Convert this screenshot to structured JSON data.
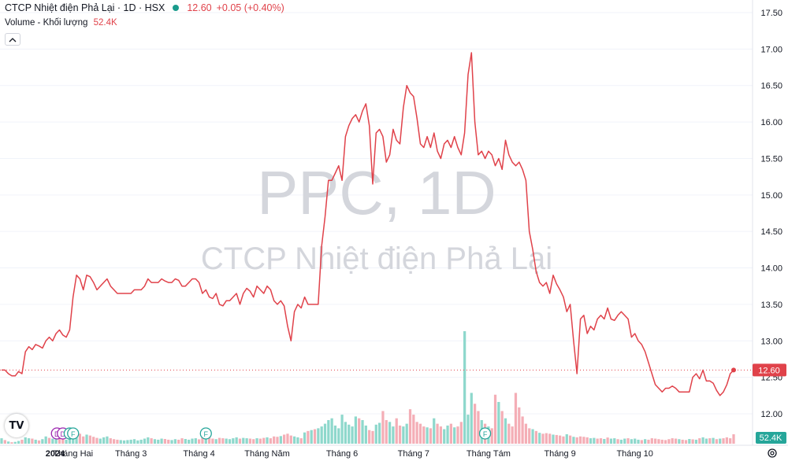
{
  "header": {
    "title": "CTCP Nhiệt điện Phả Lại · 1D · HSX",
    "price": "12.60",
    "change": "+0.05 (+0.40%)",
    "volume_label": "Volume - Khối lượng",
    "volume_value": "52.4K"
  },
  "watermark": {
    "line1": "PPC, 1D",
    "line2": "CTCP Nhiệt điện Phả Lại"
  },
  "colors": {
    "line": "#e0424a",
    "vol_up": "#8ed8cc",
    "vol_down": "#f4aeb6",
    "watermark": "#d4d6dc",
    "up_badge": "#26a69a",
    "div_badge": "#9c27b0",
    "grid": "#f0f3fa"
  },
  "icons": [
    "chevron-up-icon",
    "tradingview-logo-icon",
    "gear-icon"
  ],
  "chart_data": {
    "type": "line",
    "title": "CTCP Nhiệt điện Phả Lại · 1D · HSX",
    "y_axis": {
      "min": 11.8,
      "max": 17.6,
      "ticks": [
        "17.50",
        "17.00",
        "16.50",
        "16.00",
        "15.50",
        "15.00",
        "14.50",
        "14.00",
        "13.50",
        "13.00",
        "12.50",
        "12.00"
      ],
      "position": "right"
    },
    "x_axis": {
      "labels": [
        "2024",
        "Tháng Hai",
        "Tháng 3",
        "Tháng 4",
        "Tháng Năm",
        "Tháng 6",
        "Tháng 7",
        "Tháng Tám",
        "Tháng 9",
        "Tháng 10"
      ],
      "label_day_index": [
        0,
        21,
        38,
        58,
        78,
        100,
        121,
        143,
        164,
        186
      ]
    },
    "last_price_label": "12.60",
    "last_volume_label": "52.4K",
    "series": [
      {
        "values": [
          12.6,
          12.6,
          12.55,
          12.52,
          12.52,
          12.58,
          12.55,
          12.85,
          12.92,
          12.88,
          12.95,
          12.93,
          12.9,
          13.0,
          13.05,
          13.0,
          13.1,
          13.15,
          13.08,
          13.05,
          13.15,
          13.6,
          13.9,
          13.85,
          13.7,
          13.9,
          13.88,
          13.8,
          13.7,
          13.75,
          13.8,
          13.85,
          13.75,
          13.7,
          13.65,
          13.65,
          13.65,
          13.65,
          13.65,
          13.7,
          13.7,
          13.7,
          13.75,
          13.85,
          13.8,
          13.8,
          13.8,
          13.85,
          13.82,
          13.8,
          13.8,
          13.85,
          13.83,
          13.75,
          13.75,
          13.8,
          13.85,
          13.85,
          13.8,
          13.65,
          13.7,
          13.6,
          13.58,
          13.65,
          13.5,
          13.48,
          13.55,
          13.55,
          13.6,
          13.65,
          13.5,
          13.65,
          13.72,
          13.68,
          13.6,
          13.75,
          13.7,
          13.65,
          13.75,
          13.7,
          13.55,
          13.5,
          13.55,
          13.48,
          13.2,
          13.0,
          13.4,
          13.5,
          13.45,
          13.6,
          13.5,
          13.5,
          13.5,
          13.5,
          14.3,
          14.7,
          15.2,
          15.2,
          15.3,
          15.4,
          15.2,
          15.8,
          15.95,
          16.05,
          16.1,
          16.0,
          16.15,
          16.25,
          15.95,
          15.15,
          15.85,
          15.9,
          15.8,
          15.45,
          15.55,
          15.9,
          15.75,
          15.7,
          16.2,
          16.5,
          16.4,
          16.35,
          16.05,
          15.7,
          15.65,
          15.8,
          15.65,
          15.85,
          15.6,
          15.5,
          15.7,
          15.75,
          15.65,
          15.8,
          15.65,
          15.55,
          15.85,
          16.65,
          16.95,
          16.0,
          15.55,
          15.6,
          15.5,
          15.6,
          15.55,
          15.4,
          15.5,
          15.35,
          15.75,
          15.55,
          15.45,
          15.4,
          15.45,
          15.35,
          15.2,
          14.5,
          14.25,
          13.95,
          13.8,
          13.75,
          13.8,
          13.65,
          13.9,
          13.78,
          13.7,
          13.6,
          13.4,
          13.5,
          13.0,
          12.55,
          13.3,
          13.35,
          13.1,
          13.2,
          13.15,
          13.3,
          13.35,
          13.3,
          13.45,
          13.3,
          13.28,
          13.35,
          13.4,
          13.35,
          13.3,
          13.05,
          13.1,
          13.0,
          12.95,
          12.85,
          12.7,
          12.55,
          12.4,
          12.35,
          12.3,
          12.35,
          12.35,
          12.38,
          12.35,
          12.3,
          12.3,
          12.3,
          12.3,
          12.5,
          12.55,
          12.48,
          12.6,
          12.45,
          12.45,
          12.42,
          12.32,
          12.25,
          12.3,
          12.4,
          12.55,
          12.6
        ]
      }
    ],
    "volume_bars_k": [
      30,
      20,
      12,
      8,
      10,
      15,
      22,
      35,
      30,
      28,
      22,
      18,
      25,
      40,
      32,
      28,
      30,
      35,
      28,
      22,
      30,
      48,
      62,
      55,
      40,
      50,
      45,
      38,
      32,
      28,
      35,
      40,
      30,
      25,
      22,
      20,
      18,
      20,
      22,
      25,
      18,
      22,
      28,
      35,
      30,
      25,
      22,
      28,
      26,
      22,
      20,
      25,
      22,
      30,
      26,
      22,
      28,
      30,
      24,
      35,
      30,
      38,
      28,
      25,
      32,
      30,
      28,
      25,
      30,
      35,
      28,
      32,
      30,
      28,
      25,
      30,
      28,
      32,
      35,
      30,
      40,
      38,
      42,
      50,
      55,
      45,
      40,
      35,
      30,
      62,
      70,
      75,
      80,
      85,
      95,
      110,
      130,
      140,
      100,
      85,
      160,
      120,
      105,
      95,
      150,
      140,
      130,
      100,
      75,
      70,
      105,
      115,
      180,
      130,
      120,
      95,
      140,
      100,
      95,
      110,
      190,
      160,
      120,
      110,
      95,
      90,
      85,
      140,
      110,
      95,
      80,
      100,
      110,
      90,
      95,
      120,
      620,
      160,
      280,
      220,
      180,
      130,
      110,
      95,
      85,
      270,
      230,
      180,
      140,
      110,
      95,
      280,
      200,
      150,
      110,
      85,
      80,
      70,
      60,
      55,
      58,
      55,
      50,
      48,
      45,
      40,
      52,
      45,
      38,
      35,
      40,
      38,
      35,
      30,
      32,
      28,
      30,
      26,
      34,
      28,
      30,
      25,
      22,
      28,
      30,
      25,
      28,
      22,
      20,
      25,
      22,
      30,
      28,
      25,
      22,
      20,
      25,
      30,
      28,
      25,
      22,
      20,
      26,
      24,
      22,
      30,
      35,
      28,
      30,
      32,
      25,
      28,
      30,
      35,
      30,
      52
    ],
    "volume_up_flags": [
      1,
      0,
      1,
      0,
      1,
      1,
      0,
      1,
      1,
      0,
      1,
      0,
      1,
      1,
      0,
      1,
      1,
      0,
      0,
      1,
      1,
      1,
      1,
      0,
      0,
      1,
      0,
      0,
      0,
      1,
      1,
      1,
      0,
      0,
      0,
      1,
      1,
      1,
      1,
      1,
      1,
      1,
      1,
      1,
      0,
      1,
      1,
      1,
      0,
      0,
      1,
      1,
      0,
      0,
      1,
      1,
      1,
      1,
      0,
      0,
      1,
      0,
      0,
      1,
      0,
      0,
      1,
      1,
      1,
      1,
      0,
      1,
      1,
      0,
      0,
      1,
      0,
      0,
      1,
      0,
      0,
      0,
      1,
      0,
      0,
      0,
      1,
      1,
      0,
      1,
      0,
      1,
      0,
      1,
      1,
      1,
      1,
      1,
      1,
      1,
      1,
      1,
      1,
      1,
      1,
      0,
      1,
      1,
      0,
      0,
      1,
      1,
      0,
      0,
      1,
      1,
      0,
      0,
      1,
      1,
      0,
      0,
      0,
      0,
      0,
      1,
      0,
      1,
      0,
      0,
      1,
      1,
      0,
      1,
      0,
      0,
      1,
      1,
      1,
      0,
      0,
      1,
      0,
      1,
      0,
      0,
      1,
      0,
      1,
      0,
      0,
      0,
      0,
      0,
      0,
      0,
      1,
      0,
      1,
      0,
      0,
      0,
      1,
      0,
      0,
      0,
      1,
      0,
      1,
      0,
      0,
      0,
      0,
      1,
      1,
      0,
      0,
      1,
      0,
      1,
      1,
      0,
      1,
      1,
      0,
      1,
      1,
      1,
      0,
      1,
      0,
      0,
      0,
      0,
      0,
      0,
      0,
      0,
      0,
      1,
      0,
      0,
      1,
      0,
      1,
      0,
      1,
      1,
      0,
      1,
      0,
      1,
      0,
      0,
      0,
      0,
      1,
      1
    ],
    "events": [
      {
        "type": "dividend",
        "label": "D",
        "day": 7
      },
      {
        "type": "dividend",
        "label": "D",
        "day": 18
      },
      {
        "type": "financial",
        "label": "F",
        "day": 20
      },
      {
        "type": "financial",
        "label": "F",
        "day": 21
      },
      {
        "type": "financial",
        "label": "F",
        "day": 60
      },
      {
        "type": "financial",
        "label": "F",
        "day": 142
      }
    ]
  }
}
